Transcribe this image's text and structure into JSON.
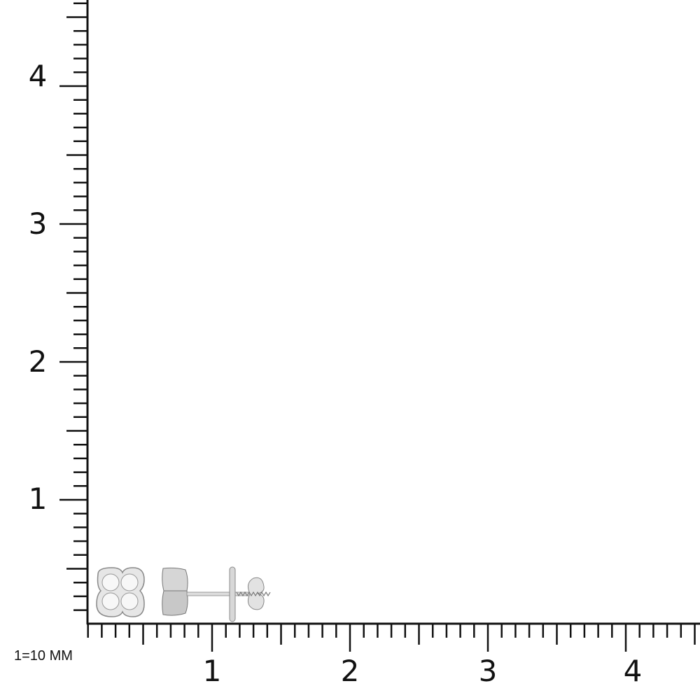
{
  "scale_note": "1=10 MM",
  "y_axis": {
    "labels": [
      "1",
      "2",
      "3",
      "4"
    ],
    "max": 4.5
  },
  "x_axis": {
    "labels": [
      "1",
      "2",
      "3",
      "4"
    ],
    "max": 4.5
  },
  "product": {
    "views": [
      "earring-front-view",
      "earring-side-view-with-screw-back"
    ],
    "metal_color": "#d8d8d8"
  }
}
